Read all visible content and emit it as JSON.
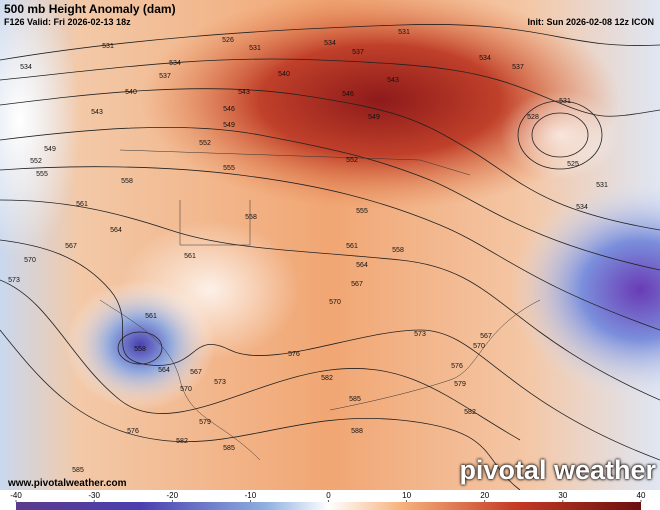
{
  "header": {
    "title": "500 mb Height Anomaly (dam)",
    "valid": "F126 Valid: Fri 2026-02-13 18z",
    "init": "Init: Sun 2026-02-08 12z ICON"
  },
  "footer": {
    "website": "www.pivotalweather.com",
    "logo": "pivotal weather"
  },
  "colorbar": {
    "ticks": [
      -40,
      -30,
      -20,
      -10,
      0,
      10,
      20,
      30,
      40
    ]
  },
  "contour_labels": [
    "531",
    "534",
    "534",
    "526",
    "531",
    "537",
    "540",
    "543",
    "540",
    "534",
    "537",
    "531",
    "534",
    "537",
    "543",
    "546",
    "549",
    "552",
    "555",
    "543",
    "546",
    "549",
    "552",
    "531",
    "528",
    "525",
    "531",
    "534",
    "549",
    "552",
    "555",
    "558",
    "561",
    "564",
    "567",
    "570",
    "573",
    "558",
    "555",
    "561",
    "561",
    "558",
    "564",
    "567",
    "570",
    "561",
    "558",
    "564",
    "567",
    "570",
    "573",
    "576",
    "579",
    "582",
    "585",
    "582",
    "585",
    "588",
    "576",
    "585",
    "573",
    "567",
    "570",
    "576",
    "579",
    "582"
  ]
}
